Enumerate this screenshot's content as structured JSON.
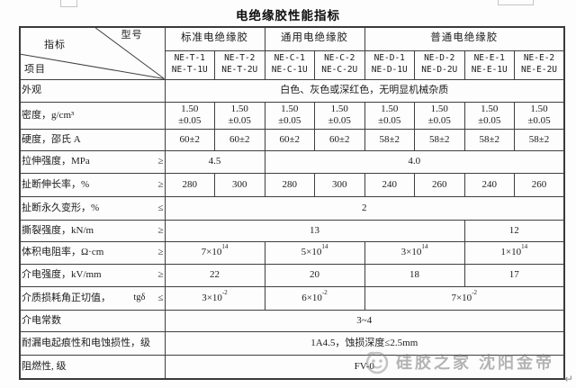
{
  "title": "电绝缘胶性能指标",
  "corner": {
    "model": "型号",
    "index": "指标",
    "item": "项目"
  },
  "table": {
    "groups": [
      {
        "label": "标准电绝缘胶",
        "span": 2
      },
      {
        "label": "通用电绝缘胶",
        "span": 2
      },
      {
        "label": "普通电绝缘胶",
        "span": 4
      }
    ],
    "models": [
      {
        "top": "NE-T-1",
        "bottom": "NE-T-1U"
      },
      {
        "top": "NE-T-2",
        "bottom": "NE-T-2U"
      },
      {
        "top": "NE-C-1",
        "bottom": "NE-C-1U"
      },
      {
        "top": "NE-C-2",
        "bottom": "NE-C-2U"
      },
      {
        "top": "NE-D-1",
        "bottom": "NE-D-1U"
      },
      {
        "top": "NE-D-2",
        "bottom": "NE-D-2U"
      },
      {
        "top": "NE-E-1",
        "bottom": "NE-E-1U"
      },
      {
        "top": "NE-E-2",
        "bottom": "NE-E-2U"
      }
    ],
    "rows": [
      {
        "label": "外观",
        "cells": [
          {
            "text": "白色、灰色或深红色，无明显机械杂质",
            "span": 8
          }
        ]
      },
      {
        "label": "密度，g/cm³",
        "cells": [
          {
            "text": "1.50\n±0.05",
            "span": 1
          },
          {
            "text": "1.50\n±0.05",
            "span": 1
          },
          {
            "text": "1.50\n±0.05",
            "span": 1
          },
          {
            "text": "1.50\n±0.05",
            "span": 1
          },
          {
            "text": "1.50\n±0.05",
            "span": 1
          },
          {
            "text": "1.50\n±0.05",
            "span": 1
          },
          {
            "text": "1.50\n±0.05",
            "span": 1
          },
          {
            "text": "1.50\n±0.05",
            "span": 1
          }
        ]
      },
      {
        "label": "硬度，邵氏 A",
        "cells": [
          {
            "text": "60±2",
            "span": 1
          },
          {
            "text": "60±2",
            "span": 1
          },
          {
            "text": "60±2",
            "span": 1
          },
          {
            "text": "60±2",
            "span": 1
          },
          {
            "text": "58±2",
            "span": 1
          },
          {
            "text": "58±2",
            "span": 1
          },
          {
            "text": "58±2",
            "span": 1
          },
          {
            "text": "58±2",
            "span": 1
          }
        ]
      },
      {
        "label": "拉伸强度，MPa",
        "symbol": "≥",
        "cells": [
          {
            "text": "4.5",
            "span": 2
          },
          {
            "text": "4.0",
            "span": 6
          }
        ]
      },
      {
        "label": "扯断伸长率，%",
        "symbol": "≥",
        "cells": [
          {
            "text": "280",
            "span": 1
          },
          {
            "text": "300",
            "span": 1
          },
          {
            "text": "280",
            "span": 1
          },
          {
            "text": "300",
            "span": 1
          },
          {
            "text": "240",
            "span": 1
          },
          {
            "text": "260",
            "span": 1
          },
          {
            "text": "240",
            "span": 1
          },
          {
            "text": "260",
            "span": 1
          }
        ]
      },
      {
        "label": "扯断永久变形，%",
        "symbol": "≤",
        "cells": [
          {
            "text": "2",
            "span": 8
          }
        ]
      },
      {
        "label": "撕裂强度，kN/m",
        "symbol": "≥",
        "cells": [
          {
            "text": "13",
            "span": 6
          },
          {
            "text": "12",
            "span": 2
          }
        ]
      },
      {
        "label": "体积电阻率，Ω·cm",
        "symbol": "≥",
        "cells": [
          {
            "text": "7×10^14",
            "span": 2
          },
          {
            "text": "5×10^14",
            "span": 2
          },
          {
            "text": "3×10^14",
            "span": 2
          },
          {
            "text": "1×10^14",
            "span": 2
          }
        ]
      },
      {
        "label": "介电强度，kV/mm",
        "symbol": "≥",
        "cells": [
          {
            "text": "22",
            "span": 2
          },
          {
            "text": "20",
            "span": 2
          },
          {
            "text": "18",
            "span": 2
          },
          {
            "text": "17",
            "span": 2
          }
        ]
      },
      {
        "label": "介质损耗角正切值，",
        "extra": "tgδ",
        "symbol": "≤",
        "cells": [
          {
            "text": "3×10^-2",
            "span": 2
          },
          {
            "text": "6×10^-2",
            "span": 2
          },
          {
            "text": "7×10^-2",
            "span": 4
          }
        ]
      },
      {
        "label": "介电常数",
        "cells": [
          {
            "text": "3~4",
            "span": 8
          }
        ]
      },
      {
        "label": "耐漏电起痕性和电蚀损性，级",
        "cells": [
          {
            "text": "1A4.5，蚀损深度≤2.5mm",
            "span": 8
          }
        ]
      },
      {
        "label": "阻燃性, 级",
        "cells": [
          {
            "text": "FV-0",
            "span": 8
          }
        ]
      }
    ]
  },
  "watermark": {
    "icon": "smiley-face-icon",
    "text": "硅胶之家 沈阳金帝"
  },
  "return_mark": "↵",
  "colors": {
    "border": "#3a3a3a",
    "text": "#1c1c1c",
    "watermark_gray": "#7d7d7d"
  }
}
